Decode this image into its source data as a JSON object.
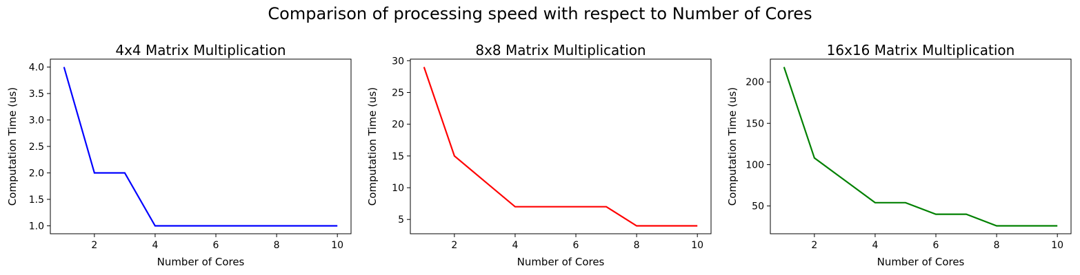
{
  "figure": {
    "suptitle": "Comparison of processing speed with respect to Number of Cores"
  },
  "chart_data": [
    {
      "type": "line",
      "title": "4x4 Matrix Multiplication",
      "xlabel": "Number of Cores",
      "ylabel": "Computation Time (us)",
      "color": "#0000ff",
      "x": [
        1,
        2,
        3,
        4,
        5,
        6,
        7,
        8,
        9,
        10
      ],
      "values": [
        4,
        2,
        2,
        1,
        1,
        1,
        1,
        1,
        1,
        1
      ],
      "xlim": [
        0.55,
        10.45
      ],
      "ylim": [
        0.85,
        4.15
      ],
      "xticks": [
        2,
        4,
        6,
        8,
        10
      ],
      "xtick_labels": [
        "2",
        "4",
        "6",
        "8",
        "10"
      ],
      "yticks": [
        1.0,
        1.5,
        2.0,
        2.5,
        3.0,
        3.5,
        4.0
      ],
      "ytick_labels": [
        "1.0",
        "1.5",
        "2.0",
        "2.5",
        "3.0",
        "3.5",
        "4.0"
      ]
    },
    {
      "type": "line",
      "title": "8x8 Matrix Multiplication",
      "xlabel": "Number of Cores",
      "ylabel": "Computation Time (us)",
      "color": "#ff0000",
      "x": [
        1,
        2,
        3,
        4,
        5,
        6,
        7,
        8,
        9,
        10
      ],
      "values": [
        29,
        15,
        11,
        7,
        7,
        7,
        7,
        4,
        4,
        4
      ],
      "xlim": [
        0.55,
        10.45
      ],
      "ylim": [
        2.75,
        30.25
      ],
      "xticks": [
        2,
        4,
        6,
        8,
        10
      ],
      "xtick_labels": [
        "2",
        "4",
        "6",
        "8",
        "10"
      ],
      "yticks": [
        5,
        10,
        15,
        20,
        25,
        30
      ],
      "ytick_labels": [
        "5",
        "10",
        "15",
        "20",
        "25",
        "30"
      ]
    },
    {
      "type": "line",
      "title": "16x16 Matrix Multiplication",
      "xlabel": "Number of Cores",
      "ylabel": "Computation Time (us)",
      "color": "#008000",
      "x": [
        1,
        2,
        3,
        4,
        5,
        6,
        7,
        8,
        9,
        10
      ],
      "values": [
        218,
        108,
        81,
        54,
        54,
        40,
        40,
        26,
        26,
        26
      ],
      "xlim": [
        0.55,
        10.45
      ],
      "ylim": [
        16.4,
        227.6
      ],
      "xticks": [
        2,
        4,
        6,
        8,
        10
      ],
      "xtick_labels": [
        "2",
        "4",
        "6",
        "8",
        "10"
      ],
      "yticks": [
        50,
        100,
        150,
        200
      ],
      "ytick_labels": [
        "50",
        "100",
        "150",
        "200"
      ]
    }
  ]
}
